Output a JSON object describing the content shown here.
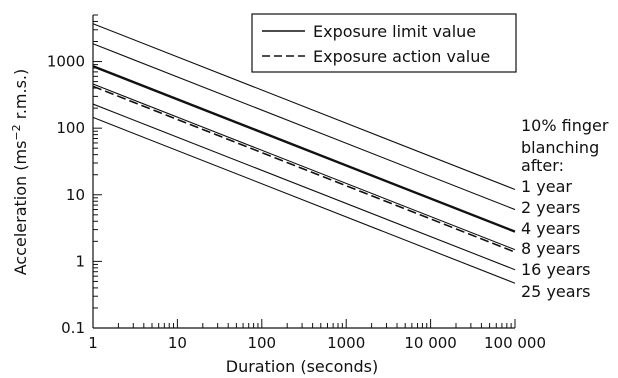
{
  "chart_data": {
    "type": "line",
    "xlabel": "Duration (seconds)",
    "ylabel": "Acceleration (ms",
    "ylabel_sup": "−2",
    "ylabel_suffix": " r.m.s.)",
    "x_scale": "log",
    "y_scale": "log",
    "xlim": [
      1,
      100000
    ],
    "ylim": [
      0.1,
      5000
    ],
    "x_ticks": [
      1,
      10,
      100,
      1000,
      10000,
      100000
    ],
    "x_tick_labels": [
      "1",
      "10",
      "100",
      "1000",
      "10 000",
      "100 000"
    ],
    "y_ticks": [
      0.1,
      1,
      10,
      100,
      1000
    ],
    "y_tick_labels": [
      "0.1",
      "1",
      "10",
      "100",
      "1000"
    ],
    "grid": false,
    "legend": {
      "position": "top-right",
      "entries": [
        {
          "label": "Exposure limit value",
          "style": "solid"
        },
        {
          "label": "Exposure action value",
          "style": "dashed"
        }
      ]
    },
    "series": [
      {
        "style": "solid-thin",
        "x": [
          1,
          100000
        ],
        "y": [
          3700,
          12
        ]
      },
      {
        "style": "solid-thin",
        "x": [
          1,
          100000
        ],
        "y": [
          1850,
          6
        ]
      },
      {
        "name": "Exposure limit value",
        "style": "solid-bold",
        "x": [
          1,
          100000
        ],
        "y": [
          850,
          2.8
        ]
      },
      {
        "style": "solid-thin",
        "x": [
          1,
          100000
        ],
        "y": [
          460,
          1.5
        ]
      },
      {
        "name": "Exposure action value",
        "style": "dashed",
        "x": [
          1,
          100000
        ],
        "y": [
          425,
          1.38
        ]
      },
      {
        "style": "solid-thin",
        "x": [
          1,
          100000
        ],
        "y": [
          230,
          0.75
        ]
      },
      {
        "style": "solid-thin",
        "x": [
          1,
          100000
        ],
        "y": [
          145,
          0.47
        ]
      }
    ],
    "annotation": {
      "header": [
        "10% finger",
        "blanching",
        "after:"
      ],
      "labels": [
        "1 year",
        "2 years",
        "4 years",
        "8 years",
        "16 years",
        "25 years"
      ]
    }
  }
}
